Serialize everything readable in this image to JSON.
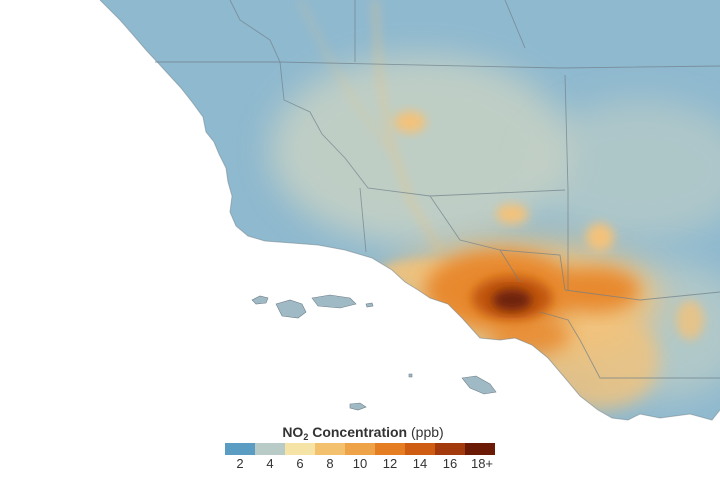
{
  "legend": {
    "title_chem": "NO",
    "title_subscript": "2",
    "title_word": " Concentration ",
    "title_unit": "(ppb)",
    "tick_labels": [
      "2",
      "4",
      "6",
      "8",
      "10",
      "12",
      "14",
      "16",
      "18+"
    ],
    "colors": [
      "#5b9dc2",
      "#b9cbc6",
      "#f6e4a6",
      "#f3c06e",
      "#eea349",
      "#e57d22",
      "#cf5c13",
      "#a23a0d",
      "#6b1a06"
    ]
  },
  "map_colors": {
    "ocean": "#ffffff",
    "land_base": "#8fb9cf",
    "valley": "#c7d2c4",
    "moderate": "#f3c27a",
    "high": "#e8892e",
    "very_high": "#c1560f",
    "peak": "#6e2409",
    "islands": "#9fb9c5",
    "borders": "#6f7f88"
  }
}
